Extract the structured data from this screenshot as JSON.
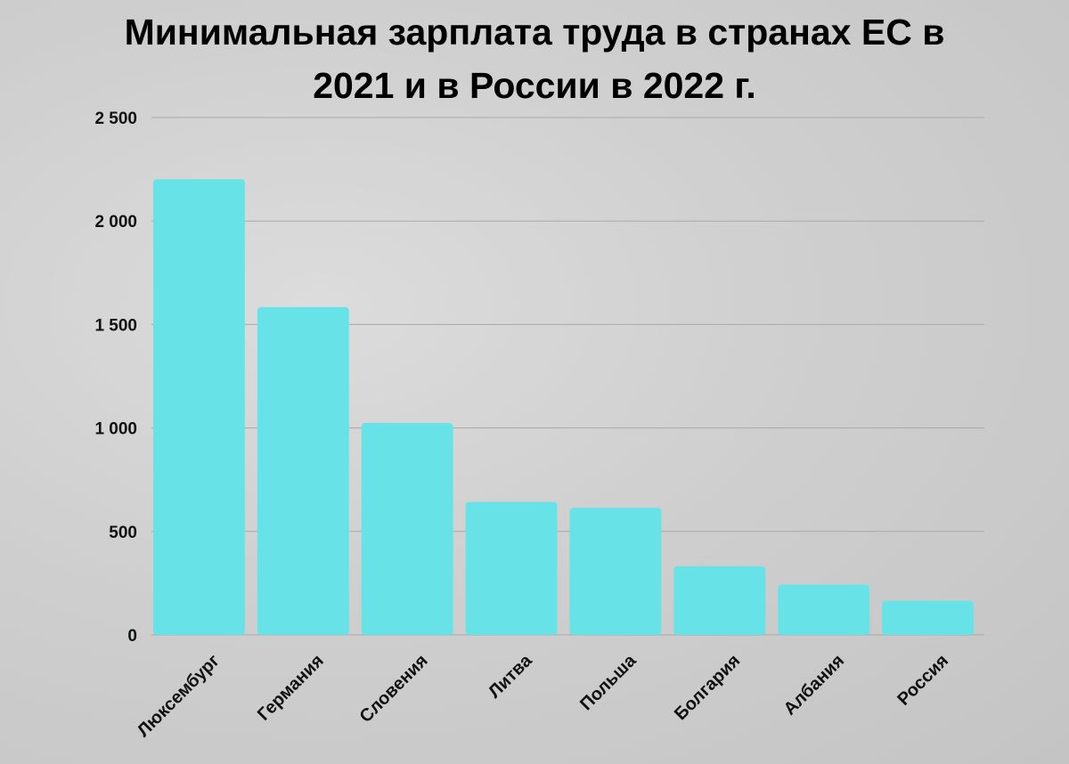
{
  "chart_data": {
    "type": "bar",
    "title_line1": "Минимальная зарплата труда в странах ЕС в",
    "title_line2": "2021 и в России в 2022 г.",
    "categories": [
      "Люксембург",
      "Германия",
      "Словения",
      "Литва",
      "Польша",
      "Болгария",
      "Албания",
      "Россия"
    ],
    "values": [
      2202,
      1584,
      1024,
      642,
      614,
      332,
      243,
      165
    ],
    "yticks": [
      "0",
      "500",
      "1 000",
      "1 500",
      "2 000",
      "2 500"
    ],
    "ylim": [
      0,
      2500
    ],
    "grid": true,
    "bar_color": "#67e3e8",
    "xlabel": "",
    "ylabel": ""
  }
}
